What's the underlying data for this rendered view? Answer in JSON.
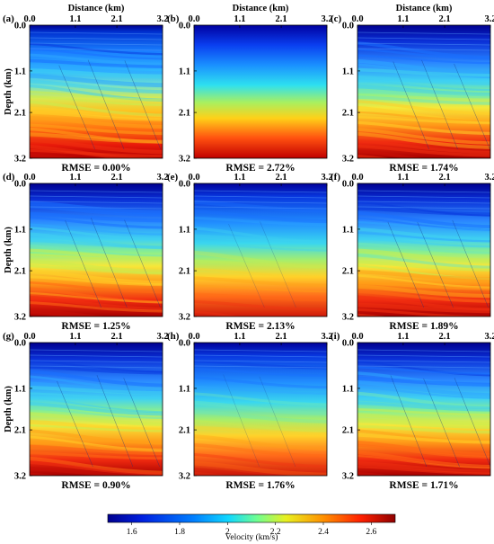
{
  "figure": {
    "top_axis_label": "Distance (km)",
    "left_axis_label": "Depth (km)",
    "x_ticks": [
      "0.0",
      "1.1",
      "2.1",
      "3.2"
    ],
    "y_ticks": [
      "0.0",
      "1.1",
      "2.1",
      "3.2"
    ],
    "panels": [
      {
        "tag": "(a)",
        "rmse": "RMSE = 0.00%",
        "style": "true-model"
      },
      {
        "tag": "(b)",
        "rmse": "RMSE = 2.72%",
        "style": "initial-gradient"
      },
      {
        "tag": "(c)",
        "rmse": "RMSE = 1.74%",
        "style": "inversion"
      },
      {
        "tag": "(d)",
        "rmse": "RMSE = 1.25%",
        "style": "inversion"
      },
      {
        "tag": "(e)",
        "rmse": "RMSE = 2.13%",
        "style": "inversion-smooth"
      },
      {
        "tag": "(f)",
        "rmse": "RMSE = 1.89%",
        "style": "inversion"
      },
      {
        "tag": "(g)",
        "rmse": "RMSE = 0.90%",
        "style": "inversion"
      },
      {
        "tag": "(h)",
        "rmse": "RMSE = 1.76%",
        "style": "inversion-smooth"
      },
      {
        "tag": "(i)",
        "rmse": "RMSE = 1.71%",
        "style": "inversion"
      }
    ],
    "colorbar": {
      "label": "Velocity (km/s)",
      "ticks": [
        "1.6",
        "1.8",
        "2",
        "2.2",
        "2.4",
        "2.6"
      ],
      "colormap": "jet"
    }
  }
}
